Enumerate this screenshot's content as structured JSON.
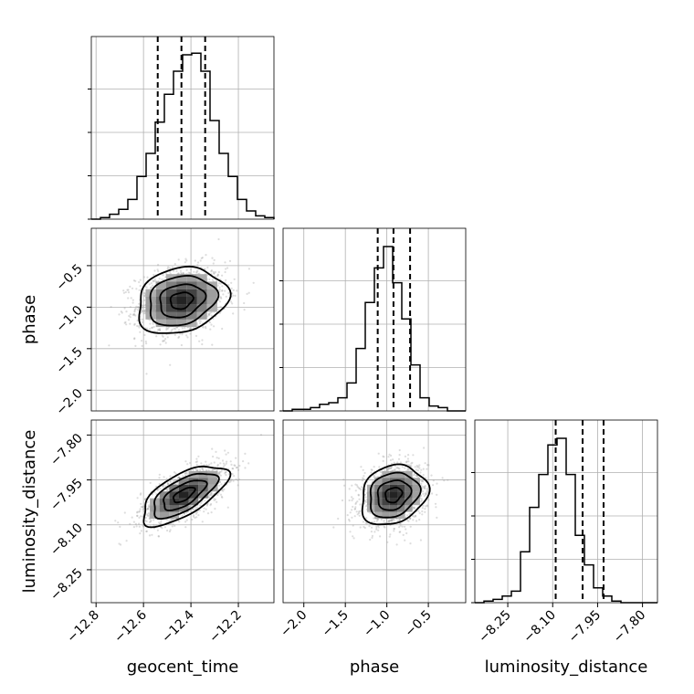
{
  "chart_data": {
    "type": "corner",
    "parameters": [
      "geocent_time",
      "phase",
      "luminosity_distance"
    ],
    "labels": {
      "geocent_time": "geocent_time",
      "phase": "phase",
      "luminosity_distance": "luminosity_distance"
    },
    "ranges": {
      "geocent_time": [
        -12.82,
        -12.05
      ],
      "phase": [
        -2.25,
        -0.05
      ],
      "luminosity_distance": [
        -8.36,
        -7.75
      ]
    },
    "ticks": {
      "geocent_time": {
        "values": [
          -12.8,
          -12.6,
          -12.4,
          -12.2
        ],
        "labels": [
          "−12.8",
          "−12.6",
          "−12.4",
          "−12.2"
        ]
      },
      "phase": {
        "values": [
          -2.0,
          -1.5,
          -1.0,
          -0.5
        ],
        "labels": [
          "−2.0",
          "−1.5",
          "−1.0",
          "−0.5"
        ]
      },
      "luminosity_distance": {
        "values": [
          -8.25,
          -8.1,
          -7.95,
          -7.8
        ],
        "labels": [
          "−8.25",
          "−8.10",
          "−7.95",
          "−7.80"
        ]
      }
    },
    "quantiles": {
      "geocent_time": [
        -12.54,
        -12.44,
        -12.34
      ],
      "phase": [
        -1.11,
        -0.92,
        -0.72
      ],
      "luminosity_distance": [
        -8.09,
        -8.0,
        -7.93
      ]
    },
    "histograms": {
      "geocent_time": [
        0.0,
        0.01,
        0.03,
        0.06,
        0.12,
        0.26,
        0.4,
        0.59,
        0.76,
        0.9,
        1.0,
        1.01,
        0.9,
        0.6,
        0.4,
        0.26,
        0.12,
        0.05,
        0.02,
        0.01
      ],
      "phase": [
        0.0,
        0.01,
        0.01,
        0.02,
        0.04,
        0.05,
        0.08,
        0.17,
        0.38,
        0.66,
        0.87,
        1.0,
        0.78,
        0.56,
        0.28,
        0.08,
        0.03,
        0.02,
        0.0,
        0.0
      ],
      "luminosity_distance": [
        0.0,
        0.01,
        0.02,
        0.04,
        0.07,
        0.31,
        0.58,
        0.78,
        0.96,
        1.0,
        0.78,
        0.41,
        0.23,
        0.09,
        0.04,
        0.01,
        0.0,
        0.0,
        0.0,
        0.0
      ]
    },
    "pairs": [
      {
        "x": "geocent_time",
        "y": "phase",
        "center": [
          -12.44,
          -0.92
        ],
        "sigma": [
          0.095,
          0.2
        ],
        "correlation": 0.2
      },
      {
        "x": "geocent_time",
        "y": "luminosity_distance",
        "center": [
          -12.43,
          -8.0
        ],
        "sigma": [
          0.09,
          0.05
        ],
        "correlation": 0.65
      },
      {
        "x": "phase",
        "y": "luminosity_distance",
        "center": [
          -0.92,
          -8.0
        ],
        "sigma": [
          0.2,
          0.05
        ],
        "correlation": 0.2
      }
    ],
    "contour_levels_sigma": [
      0.5,
      1.0,
      1.5,
      2.0
    ],
    "scatter_color": "#9e9e9e",
    "grid": true
  }
}
